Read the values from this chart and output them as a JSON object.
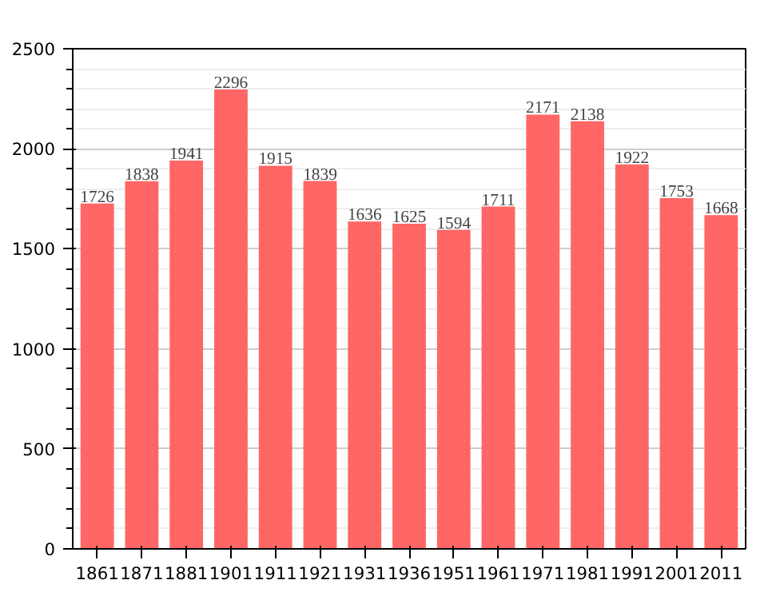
{
  "chart_data": {
    "type": "bar",
    "categories": [
      "1861",
      "1871",
      "1881",
      "1901",
      "1911",
      "1921",
      "1931",
      "1936",
      "1951",
      "1961",
      "1971",
      "1981",
      "1991",
      "2001",
      "2011"
    ],
    "values": [
      1726,
      1838,
      1941,
      2296,
      1915,
      1839,
      1636,
      1625,
      1594,
      1711,
      2171,
      2138,
      1922,
      1753,
      1668
    ],
    "color": "#ff6666",
    "ylim": [
      0,
      2500
    ],
    "yticks": [
      0,
      500,
      1000,
      1500,
      2000,
      2500
    ],
    "grid": "y",
    "data_labels": true
  }
}
